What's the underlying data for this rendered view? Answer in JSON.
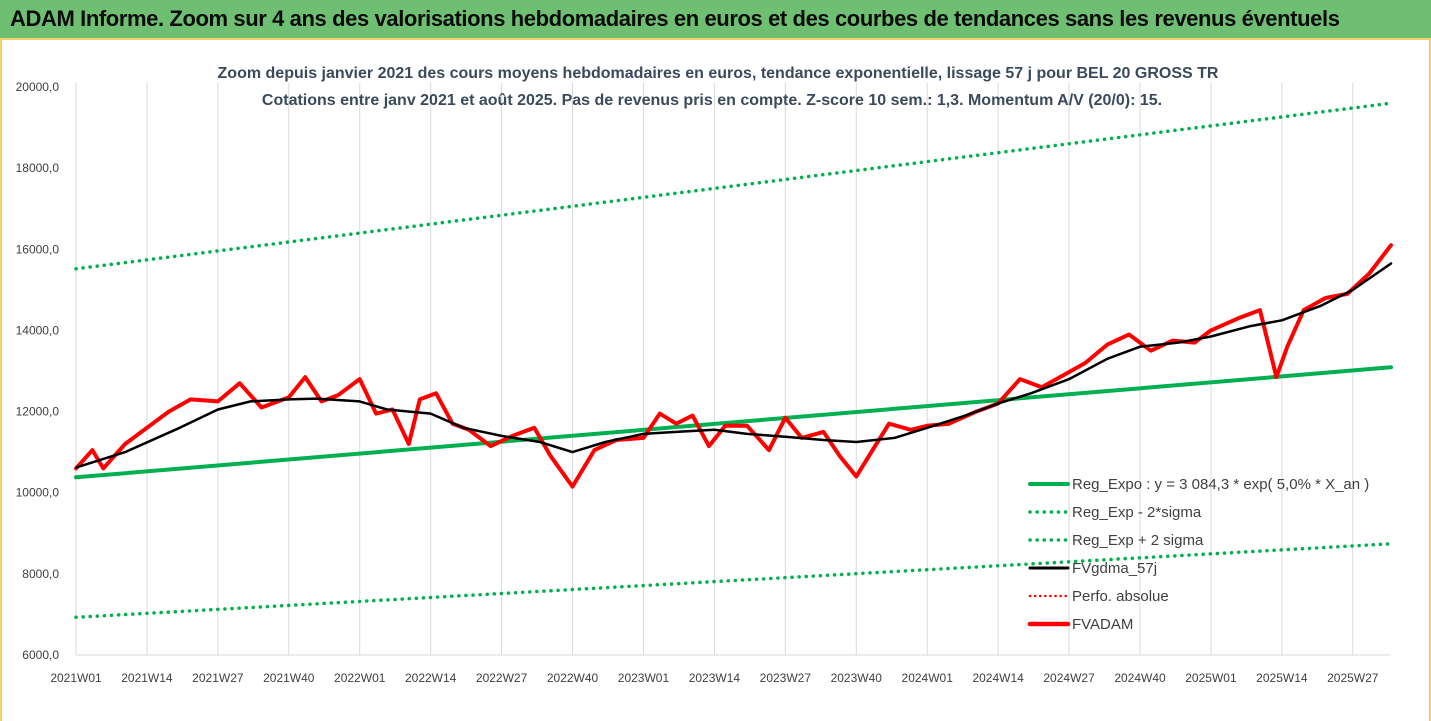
{
  "banner": {
    "title": "ADAM Informe. Zoom sur 4 ans des valorisations hebdomadaires en euros et des courbes de tendances sans les revenus éventuels"
  },
  "colors": {
    "banner_bg": "#6fbf73",
    "trend": "#00b050",
    "fvgdma": "#000000",
    "fvadam": "#ff0000",
    "perfo": "#ff0000"
  },
  "chart_data": {
    "type": "line",
    "title": "Zoom depuis janvier 2021 des cours moyens hebdomadaires en euros, tendance exponentielle, lissage 57 j pour BEL 20 GROSS TR",
    "subtitle": "Cotations entre janv 2021 et août 2025. Pas de revenus pris en compte. Z-score 10 sem.: 1,3. Momentum A/V (20/0): 15.",
    "ylim": [
      6000,
      20000
    ],
    "yticks": [
      "6000,0",
      "8000,0",
      "10000,0",
      "12000,0",
      "14000,0",
      "16000,0",
      "18000,0",
      "20000,0"
    ],
    "x_tick_labels": [
      "2021W01",
      "2021W14",
      "2021W27",
      "2021W40",
      "2022W01",
      "2022W14",
      "2022W27",
      "2022W40",
      "2023W01",
      "2023W14",
      "2023W27",
      "2023W40",
      "2024W01",
      "2024W14",
      "2024W27",
      "2024W40",
      "2025W01",
      "2025W14",
      "2025W27"
    ],
    "grid": "vertical",
    "legend_position": "bottom-right",
    "legend": [
      "Reg_Expo : y = 3 084,3 * exp( 5,0% *  X_an )",
      "Reg_Exp - 2*sigma",
      "Reg_Exp + 2 sigma",
      "FVgdma_57j",
      "Perfo. absolue",
      "FVADAM"
    ],
    "series": [
      {
        "name": "Reg_Expo : y = 3 084,3 * exp( 5,0% *  X_an )",
        "style": "solid-thick",
        "x": [
          "2021W01",
          "2025W34"
        ],
        "values": [
          10380,
          13090
        ]
      },
      {
        "name": "Reg_Exp - 2*sigma",
        "style": "dotted",
        "x": [
          "2021W01",
          "2025W34"
        ],
        "values": [
          6930,
          8740
        ]
      },
      {
        "name": "Reg_Exp + 2 sigma",
        "style": "dotted",
        "x": [
          "2021W01",
          "2025W34"
        ],
        "values": [
          15520,
          19600
        ]
      },
      {
        "name": "FVgdma_57j",
        "style": "solid",
        "x": [
          "2021W01",
          "2021W10",
          "2021W20",
          "2021W27",
          "2021W33",
          "2021W40",
          "2021W45",
          "2022W01",
          "2022W06",
          "2022W14",
          "2022W20",
          "2022W27",
          "2022W34",
          "2022W40",
          "2022W46",
          "2023W01",
          "2023W07",
          "2023W14",
          "2023W20",
          "2023W27",
          "2023W34",
          "2023W40",
          "2023W47",
          "2024W01",
          "2024W08",
          "2024W14",
          "2024W20",
          "2024W27",
          "2024W34",
          "2024W40",
          "2024W47",
          "2025W01",
          "2025W08",
          "2025W14",
          "2025W21",
          "2025W27",
          "2025W34"
        ],
        "values": [
          10620,
          11000,
          11600,
          12050,
          12250,
          12300,
          12320,
          12250,
          12050,
          11950,
          11600,
          11400,
          11250,
          11000,
          11250,
          11450,
          11500,
          11550,
          11450,
          11380,
          11300,
          11250,
          11350,
          11600,
          11900,
          12200,
          12450,
          12800,
          13300,
          13600,
          13700,
          13850,
          14100,
          14250,
          14600,
          15000,
          15650
        ]
      },
      {
        "name": "FVADAM",
        "style": "solid-thick",
        "x": [
          "2021W01",
          "2021W04",
          "2021W06",
          "2021W10",
          "2021W14",
          "2021W18",
          "2021W22",
          "2021W27",
          "2021W31",
          "2021W35",
          "2021W40",
          "2021W43",
          "2021W46",
          "2021W49",
          "2022W01",
          "2022W04",
          "2022W07",
          "2022W10",
          "2022W12",
          "2022W15",
          "2022W18",
          "2022W21",
          "2022W25",
          "2022W29",
          "2022W33",
          "2022W36",
          "2022W40",
          "2022W44",
          "2022W48",
          "2023W01",
          "2023W04",
          "2023W07",
          "2023W10",
          "2023W13",
          "2023W16",
          "2023W20",
          "2023W24",
          "2023W27",
          "2023W30",
          "2023W34",
          "2023W37",
          "2023W40",
          "2023W43",
          "2023W46",
          "2023W50",
          "2024W01",
          "2024W05",
          "2024W10",
          "2024W14",
          "2024W18",
          "2024W22",
          "2024W26",
          "2024W30",
          "2024W34",
          "2024W38",
          "2024W42",
          "2024W46",
          "2024W50",
          "2025W01",
          "2025W06",
          "2025W10",
          "2025W13",
          "2025W15",
          "2025W18",
          "2025W22",
          "2025W26",
          "2025W30",
          "2025W34"
        ],
        "values": [
          10600,
          11050,
          10600,
          11200,
          11600,
          12000,
          12300,
          12250,
          12700,
          12100,
          12350,
          12850,
          12250,
          12400,
          12800,
          11950,
          12050,
          11200,
          12300,
          12450,
          11700,
          11550,
          11150,
          11400,
          11600,
          10900,
          10150,
          11050,
          11300,
          11350,
          11950,
          11700,
          11900,
          11150,
          11650,
          11650,
          11050,
          11850,
          11350,
          11500,
          10900,
          10400,
          11050,
          11700,
          11550,
          11650,
          11700,
          12000,
          12200,
          12800,
          12600,
          12900,
          13200,
          13650,
          13900,
          13500,
          13750,
          13700,
          14000,
          14300,
          14500,
          12850,
          13600,
          14500,
          14800,
          14900,
          15400,
          16100
        ]
      }
    ]
  }
}
